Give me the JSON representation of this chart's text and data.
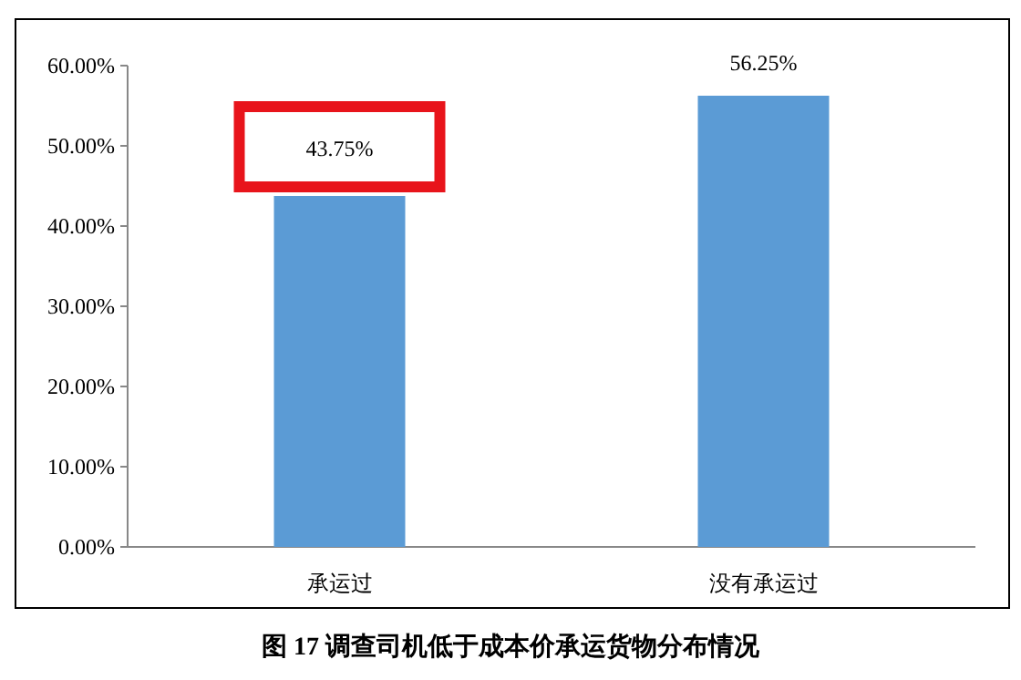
{
  "chart_data": {
    "type": "bar",
    "title": "图 17  调查司机低于成本价承运货物分布情况",
    "categories": [
      "承运过",
      "没有承运过"
    ],
    "values": [
      43.75,
      56.25
    ],
    "value_labels": [
      "43.75%",
      "56.25%"
    ],
    "color": "#5b9bd5",
    "ylim": [
      0,
      60
    ],
    "yticks": [
      {
        "value": 0,
        "label": "0.00%"
      },
      {
        "value": 10,
        "label": "10.00%"
      },
      {
        "value": 20,
        "label": "20.00%"
      },
      {
        "value": 30,
        "label": "30.00%"
      },
      {
        "value": 40,
        "label": "40.00%"
      },
      {
        "value": 50,
        "label": "50.00%"
      },
      {
        "value": 60,
        "label": "60.00%"
      }
    ]
  }
}
